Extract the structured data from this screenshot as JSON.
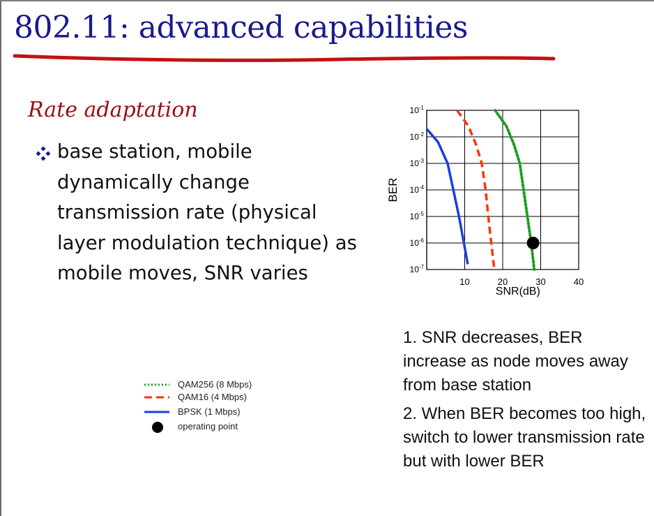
{
  "slide": {
    "title": "802.11: advanced capabilities",
    "subtitle": "Rate adaptation",
    "bullet": "base station, mobile dynamically change transmission rate (physical layer modulation technique) as mobile moves, SNR varies",
    "note1": "1. SNR decreases, BER increase as node moves away from base station",
    "note2": "2. When BER becomes too high, switch to lower transmission rate but with lower BER",
    "colors": {
      "title": "#1a1a8c",
      "subtitle": "#9b0e0e",
      "underline": "#c21212",
      "bullet_icon": "#1a1a8c"
    }
  },
  "legend": [
    {
      "label": "QAM256 (8 Mbps)",
      "style": "dotted",
      "color": "#1a9e1a"
    },
    {
      "label": "QAM16 (4 Mbps)",
      "style": "dashed",
      "color": "#ff3300"
    },
    {
      "label": "BPSK (1 Mbps)",
      "style": "solid",
      "color": "#1a3ee0"
    },
    {
      "label": "operating point",
      "style": "dot",
      "color": "#000000"
    }
  ],
  "chart_data": {
    "type": "line",
    "xlabel": "SNR(dB)",
    "ylabel": "BER",
    "xlim": [
      0,
      40
    ],
    "ylim_log10": [
      -7,
      -1
    ],
    "y_scale": "log",
    "grid": true,
    "x_ticks": [
      "10",
      "20",
      "30",
      "40"
    ],
    "y_ticks": [
      {
        "base": "10",
        "exp": "-1"
      },
      {
        "base": "10",
        "exp": "-2"
      },
      {
        "base": "10",
        "exp": "-3"
      },
      {
        "base": "10",
        "exp": "-4"
      },
      {
        "base": "10",
        "exp": "-5"
      },
      {
        "base": "10",
        "exp": "-6"
      },
      {
        "base": "10",
        "exp": "-7"
      }
    ],
    "series": [
      {
        "name": "QAM256 (8 Mbps)",
        "color": "#1a9e1a",
        "style": "dotted",
        "points": [
          [
            18,
            -1.0
          ],
          [
            21,
            -1.6
          ],
          [
            23,
            -2.3
          ],
          [
            24.5,
            -3.0
          ],
          [
            25.5,
            -4.0
          ],
          [
            26.5,
            -5.0
          ],
          [
            27.5,
            -6.0
          ],
          [
            28.3,
            -7.0
          ]
        ]
      },
      {
        "name": "QAM16 (4 Mbps)",
        "color": "#ff3300",
        "style": "dashed",
        "points": [
          [
            8,
            -1.0
          ],
          [
            11,
            -1.6
          ],
          [
            13,
            -2.3
          ],
          [
            14.5,
            -3.0
          ],
          [
            15.5,
            -4.0
          ],
          [
            16.2,
            -5.0
          ],
          [
            17,
            -6.0
          ],
          [
            17.8,
            -7.0
          ]
        ]
      },
      {
        "name": "BPSK (1 Mbps)",
        "color": "#1a3ee0",
        "style": "solid",
        "points": [
          [
            0,
            -1.7
          ],
          [
            3,
            -2.2
          ],
          [
            5.5,
            -3.0
          ],
          [
            7,
            -4.0
          ],
          [
            8.5,
            -5.0
          ],
          [
            9.8,
            -6.0
          ],
          [
            10.8,
            -6.8
          ]
        ]
      }
    ],
    "operating_point": {
      "x": 28,
      "y": -6.0,
      "label": "operating point"
    }
  }
}
